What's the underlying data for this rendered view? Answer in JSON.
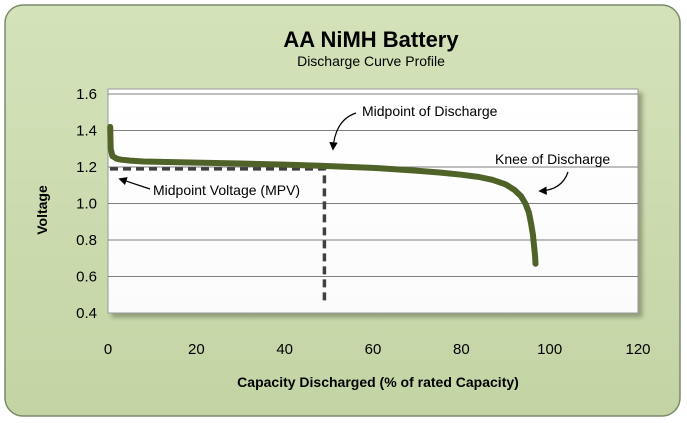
{
  "colors": {
    "card_background": "#c9d9ac",
    "card_border": "#7a8a6a",
    "plot_background": "#ffffff",
    "gridline": "#7f7f7f",
    "curve": "#4f6228",
    "mpv_line": "#404040"
  },
  "chart_data": {
    "type": "line",
    "title": "AA NiMH Battery",
    "subtitle": "Discharge Curve Profile",
    "xlabel": "Capacity Discharged  (% of rated Capacity)",
    "ylabel": "Voltage",
    "xlim": [
      0,
      120
    ],
    "ylim": [
      0.4,
      1.6
    ],
    "x_ticks": [
      "0",
      "20",
      "40",
      "60",
      "80",
      "100",
      "120"
    ],
    "y_ticks": [
      "0.4",
      "0.6",
      "0.8",
      "1.0",
      "1.2",
      "1.4",
      "1.6"
    ],
    "grid": "horizontal",
    "series": [
      {
        "x": [
          0.5,
          0.6,
          1,
          2,
          3,
          5,
          8,
          12,
          20,
          30,
          40,
          48,
          55,
          60,
          65,
          70,
          75,
          80,
          84,
          87,
          90,
          92,
          93.5,
          94.5,
          95.3,
          95.8,
          96.2,
          96.5,
          96.7,
          96.8
        ],
        "y": [
          1.42,
          1.3,
          1.26,
          1.245,
          1.24,
          1.235,
          1.23,
          1.228,
          1.224,
          1.219,
          1.213,
          1.207,
          1.2,
          1.195,
          1.188,
          1.18,
          1.17,
          1.158,
          1.145,
          1.13,
          1.105,
          1.075,
          1.04,
          1.0,
          0.95,
          0.89,
          0.83,
          0.76,
          0.71,
          0.67
        ]
      }
    ],
    "mpv_reference": {
      "x": 49,
      "y": 1.19
    },
    "annotations": {
      "midpoint_of_discharge": "Midpoint of Discharge",
      "knee_of_discharge": "Knee of Discharge",
      "midpoint_voltage": "Midpoint Voltage (MPV)"
    }
  }
}
